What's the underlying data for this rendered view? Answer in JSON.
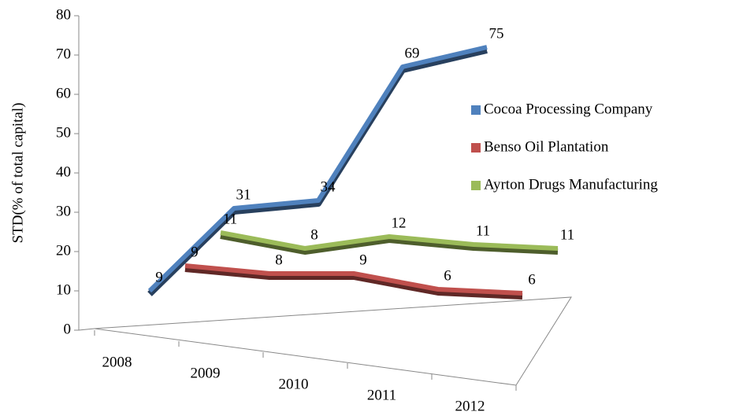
{
  "chart_data": {
    "type": "line3d",
    "y_label": "STD(%  of total capital)",
    "categories": [
      "2008",
      "2009",
      "2010",
      "2011",
      "2012"
    ],
    "series": [
      {
        "name": "Cocoa Processing Company",
        "color": "#4f81bd",
        "values": [
          9,
          31,
          34,
          69,
          75
        ]
      },
      {
        "name": "Benso Oil Plantation",
        "color": "#c0504d",
        "values": [
          9,
          8,
          9,
          6,
          6
        ]
      },
      {
        "name": "Ayrton Drugs Manufacturing",
        "color": "#9bbb59",
        "values": [
          11,
          8,
          12,
          11,
          11
        ]
      }
    ],
    "ylim": [
      0,
      80
    ],
    "yticks": [
      0,
      10,
      20,
      30,
      40,
      50,
      60,
      70,
      80
    ],
    "legend": "right"
  }
}
